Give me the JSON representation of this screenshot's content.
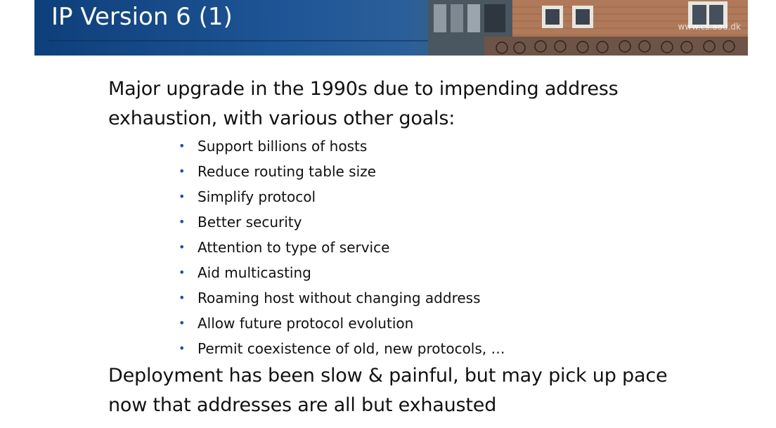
{
  "header": {
    "title": "IP Version 6 (1)",
    "url_watermark": "www.cs.aau.dk"
  },
  "body": {
    "intro_line1": "Major upgrade in the 1990s due to impending address",
    "intro_line2": "exhaustion, with various other goals:",
    "goals": [
      "Support billions of hosts",
      "Reduce routing table size",
      "Simplify protocol",
      "Better security",
      "Attention to type of service",
      "Aid multicasting",
      "Roaming host without changing address",
      "Allow future protocol evolution",
      "Permit coexistence of old, new protocols, …"
    ],
    "closing_line1": "Deployment has been slow & painful, but may pick up pace",
    "closing_line2": "now that addresses are all but exhausted"
  },
  "colors": {
    "header_blue": "#1e5596",
    "bullet_blue": "#1f4fa8",
    "text": "#111111"
  }
}
